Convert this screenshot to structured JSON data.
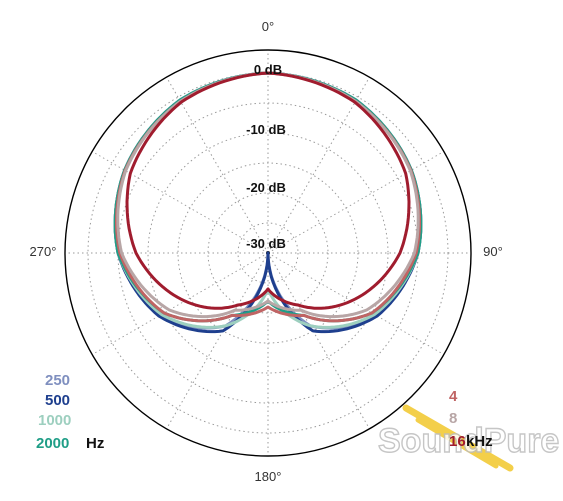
{
  "chart_data": {
    "type": "polar",
    "angle_labels": [
      "0°",
      "90°",
      "180°",
      "270°"
    ],
    "radial_labels": [
      "0 dB",
      "-10 dB",
      "-20 dB",
      "-30 dB"
    ],
    "radial_range_db": [
      -30,
      0
    ],
    "grid": true,
    "left_legend": {
      "items": [
        "250",
        "500",
        "1000",
        "2000"
      ],
      "unit": "Hz"
    },
    "right_legend": {
      "items": [
        "4",
        "8",
        "16"
      ],
      "unit": "kHz"
    },
    "series": [
      {
        "name": "250",
        "color": "#7f8fbf",
        "points": [
          [
            0,
            0
          ],
          [
            30,
            -0.6
          ],
          [
            60,
            -2.4
          ],
          [
            90,
            -5
          ],
          [
            120,
            -9
          ],
          [
            150,
            -16
          ],
          [
            180,
            -30
          ],
          [
            210,
            -16
          ],
          [
            240,
            -9
          ],
          [
            270,
            -5
          ],
          [
            300,
            -2.4
          ],
          [
            330,
            -0.6
          ]
        ]
      },
      {
        "name": "500",
        "color": "#1e3f8e",
        "points": [
          [
            0,
            0
          ],
          [
            30,
            -0.6
          ],
          [
            60,
            -2.4
          ],
          [
            90,
            -5
          ],
          [
            120,
            -9
          ],
          [
            150,
            -15
          ],
          [
            180,
            -30
          ],
          [
            210,
            -15
          ],
          [
            240,
            -9
          ],
          [
            270,
            -5
          ],
          [
            300,
            -2.4
          ],
          [
            330,
            -0.6
          ]
        ]
      },
      {
        "name": "1000",
        "color": "#9dcfbf",
        "points": [
          [
            0,
            0
          ],
          [
            30,
            -0.6
          ],
          [
            60,
            -2.4
          ],
          [
            90,
            -5
          ],
          [
            120,
            -9.5
          ],
          [
            150,
            -16
          ],
          [
            180,
            -24
          ],
          [
            210,
            -16
          ],
          [
            240,
            -9.5
          ],
          [
            270,
            -5
          ],
          [
            300,
            -2.4
          ],
          [
            330,
            -0.6
          ]
        ]
      },
      {
        "name": "2000",
        "color": "#1f9e87",
        "points": [
          [
            0,
            0
          ],
          [
            30,
            -0.6
          ],
          [
            60,
            -2.4
          ],
          [
            90,
            -5
          ],
          [
            120,
            -10
          ],
          [
            150,
            -18
          ],
          [
            180,
            -22
          ],
          [
            210,
            -18
          ],
          [
            240,
            -10
          ],
          [
            270,
            -5
          ],
          [
            300,
            -2.4
          ],
          [
            330,
            -0.6
          ]
        ]
      },
      {
        "name": "4",
        "color": "#c06464",
        "points": [
          [
            0,
            0
          ],
          [
            30,
            -0.8
          ],
          [
            60,
            -2.5
          ],
          [
            90,
            -5.3
          ],
          [
            120,
            -10
          ],
          [
            150,
            -18
          ],
          [
            180,
            -21
          ],
          [
            210,
            -18
          ],
          [
            240,
            -10
          ],
          [
            270,
            -5.3
          ],
          [
            300,
            -2.5
          ],
          [
            330,
            -0.8
          ]
        ]
      },
      {
        "name": "8",
        "color": "#b8a6a6",
        "points": [
          [
            0,
            0
          ],
          [
            30,
            -0.8
          ],
          [
            60,
            -2.6
          ],
          [
            90,
            -5.6
          ],
          [
            120,
            -11
          ],
          [
            150,
            -19
          ],
          [
            180,
            -22
          ],
          [
            210,
            -19
          ],
          [
            240,
            -11
          ],
          [
            270,
            -5.6
          ],
          [
            300,
            -2.6
          ],
          [
            330,
            -0.8
          ]
        ]
      },
      {
        "name": "16",
        "color": "#a01c2e",
        "points": [
          [
            0,
            0
          ],
          [
            30,
            -1
          ],
          [
            60,
            -3.5
          ],
          [
            90,
            -8
          ],
          [
            120,
            -14
          ],
          [
            150,
            -20
          ],
          [
            180,
            -24
          ],
          [
            210,
            -20
          ],
          [
            240,
            -14
          ],
          [
            270,
            -8
          ],
          [
            300,
            -3.5
          ],
          [
            330,
            -1
          ]
        ]
      }
    ]
  },
  "watermark": "SoundPure"
}
